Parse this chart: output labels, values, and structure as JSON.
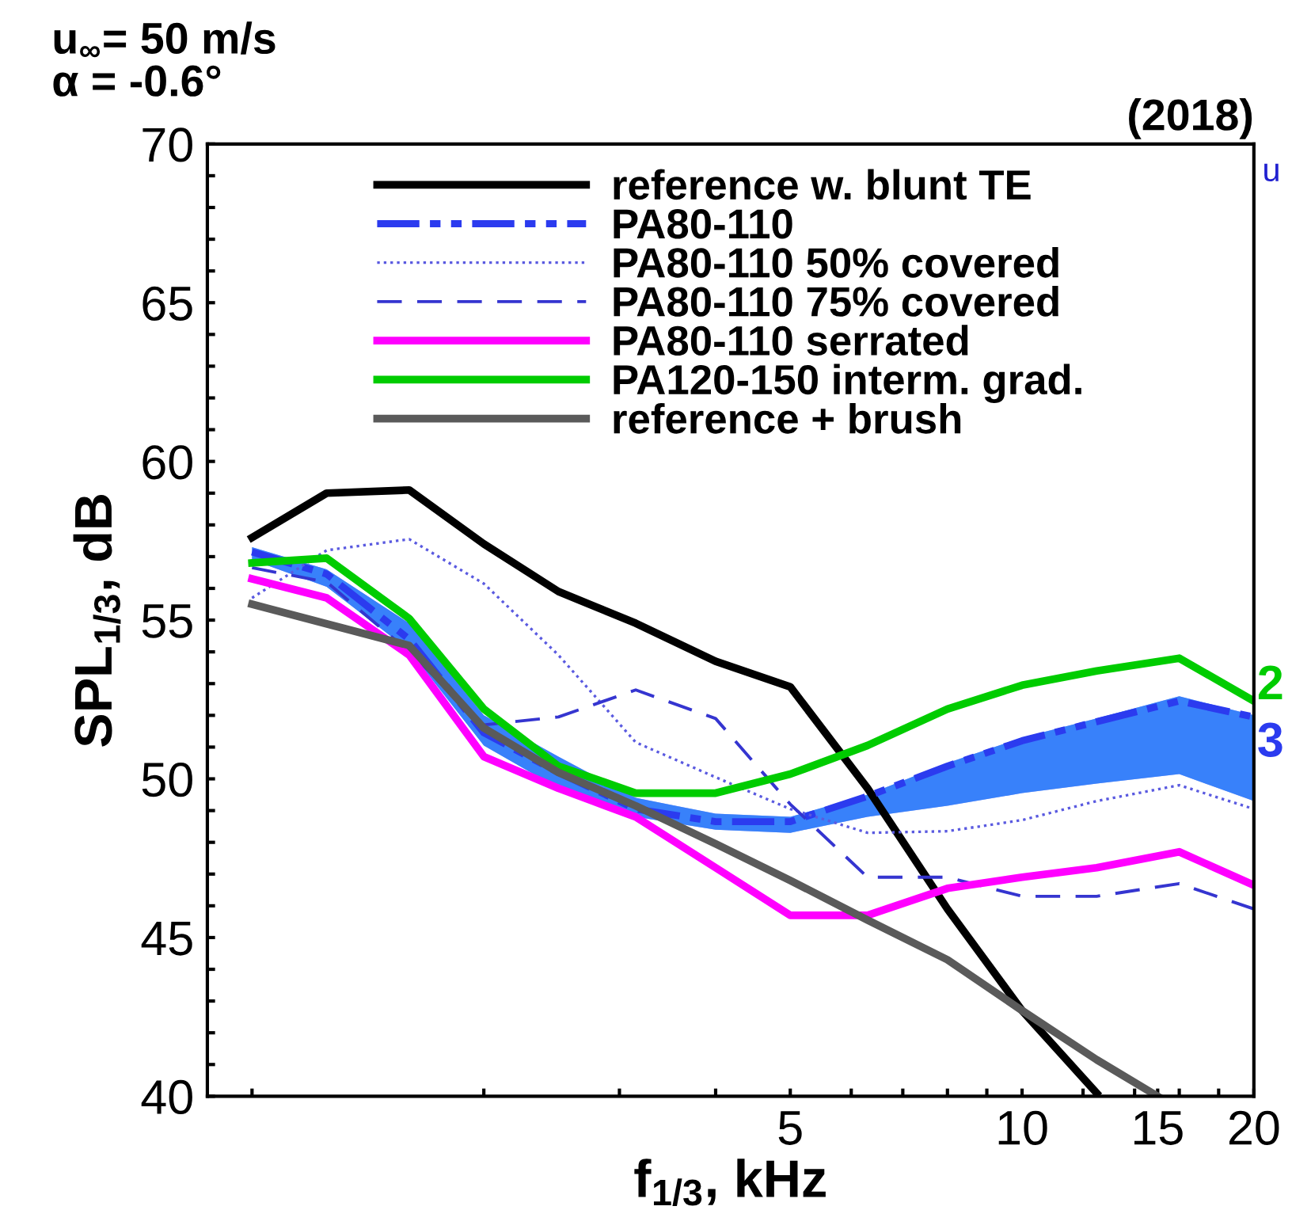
{
  "chart_data": {
    "type": "line",
    "title": "u$_{∞}$= 50 m/s",
    "subtitle": "α = -0.6°",
    "xlabel": "f$_{1/3}$, kHz",
    "ylabel": "SPL$_{1/3}$, dB",
    "annotations": [
      "(2018)",
      "u",
      "2",
      "3"
    ],
    "x": [
      1,
      1.25,
      1.6,
      2,
      2.5,
      3.15,
      4,
      5,
      6.3,
      8,
      10,
      12.5,
      16,
      20
    ],
    "series": [
      {
        "name": "reference w. blunt TE",
        "color": "#000000",
        "line_style": "solid",
        "values": [
          57.6,
          59.0,
          59.1,
          57.4,
          55.9,
          54.9,
          53.7,
          52.9,
          49.7,
          45.9,
          42.7,
          40.1,
          null,
          null
        ]
      },
      {
        "name": "PA80-110",
        "color": "#2b3bef",
        "line_style": "dashdot",
        "values": [
          57.15,
          56.45,
          54.4,
          51.45,
          50.2,
          49.05,
          48.65,
          48.65,
          49.45,
          50.4,
          51.2,
          51.8,
          52.45,
          51.95
        ],
        "lower": [
          56.9,
          56.05,
          54.05,
          51.05,
          49.7,
          48.8,
          48.4,
          48.3,
          48.8,
          49.15,
          49.55,
          49.85,
          50.15,
          49.3
        ],
        "upper": [
          57.3,
          56.6,
          54.9,
          52.0,
          50.7,
          49.4,
          48.9,
          48.8,
          49.5,
          50.5,
          51.3,
          51.9,
          52.6,
          52.0
        ]
      },
      {
        "name": "PA80-110 50% covered",
        "color": "#5a5ae0",
        "line_style": "dotted",
        "values": [
          55.7,
          57.2,
          57.55,
          56.15,
          53.9,
          51.15,
          50.05,
          49.05,
          48.3,
          48.35,
          48.7,
          49.3,
          49.8,
          49.05
        ]
      },
      {
        "name": "PA80-110 75% covered",
        "color": "#3535d0",
        "line_style": "dashed",
        "values": [
          56.65,
          56.2,
          54.0,
          51.7,
          51.95,
          52.8,
          51.9,
          49.2,
          46.9,
          46.9,
          46.3,
          46.3,
          46.7,
          45.9
        ]
      },
      {
        "name": "PA80-110 serrated",
        "color": "#ff00ff",
        "line_style": "solid",
        "values": [
          56.3,
          55.7,
          53.9,
          50.7,
          49.7,
          48.8,
          47.2,
          45.7,
          45.7,
          46.55,
          46.9,
          47.2,
          47.7,
          46.65
        ]
      },
      {
        "name": "PA120-150 interm. grad.",
        "color": "#00cc00",
        "line_style": "solid",
        "values": [
          56.8,
          56.95,
          55.05,
          52.2,
          50.4,
          49.55,
          49.55,
          50.15,
          51.05,
          52.2,
          52.95,
          53.4,
          53.8,
          52.45
        ]
      },
      {
        "name": "reference + brush",
        "color": "#5a5a5a",
        "line_style": "solid",
        "x": [
          1,
          1.6,
          2,
          2.5,
          3.15,
          4,
          5,
          6.3,
          8,
          10,
          12.5,
          15
        ],
        "values": [
          55.5,
          54.2,
          51.6,
          50.2,
          49.15,
          47.95,
          46.8,
          45.55,
          44.3,
          42.7,
          41.15,
          40.0
        ]
      }
    ],
    "log": "x",
    "xlim": [
      0.875,
      20
    ],
    "xticks": [
      {
        "value": 1,
        "label": null
      },
      {
        "value": 2,
        "label": null
      },
      {
        "value": 3,
        "label": null
      },
      {
        "value": 4,
        "label": null
      },
      5,
      {
        "value": 6,
        "label": null
      },
      {
        "value": 7,
        "label": null
      },
      {
        "value": 8,
        "label": null
      },
      {
        "value": 9,
        "label": null
      },
      10,
      {
        "value": 12,
        "label": null
      },
      {
        "value": 14,
        "label": null
      },
      15,
      {
        "value": 16,
        "label": null
      },
      {
        "value": 18,
        "label": null
      },
      20
    ],
    "ylim": [
      40,
      70
    ],
    "yticks": [
      40,
      {
        "value": 41,
        "label": null
      },
      {
        "value": 42,
        "label": null
      },
      {
        "value": 43,
        "label": null
      },
      {
        "value": 44,
        "label": null
      },
      45,
      {
        "value": 46,
        "label": null
      },
      {
        "value": 47,
        "label": null
      },
      {
        "value": 48,
        "label": null
      },
      {
        "value": 49,
        "label": null
      },
      50,
      {
        "value": 51,
        "label": null
      },
      {
        "value": 52,
        "label": null
      },
      {
        "value": 53,
        "label": null
      },
      {
        "value": 54,
        "label": null
      },
      55,
      {
        "value": 56,
        "label": null
      },
      {
        "value": 57,
        "label": null
      },
      {
        "value": 58,
        "label": null
      },
      {
        "value": 59,
        "label": null
      },
      60,
      {
        "value": 61,
        "label": null
      },
      {
        "value": 62,
        "label": null
      },
      {
        "value": 63,
        "label": null
      },
      {
        "value": 64,
        "label": null
      },
      65,
      {
        "value": 66,
        "label": null
      },
      {
        "value": 67,
        "label": null
      },
      {
        "value": 68,
        "label": null
      },
      {
        "value": 69,
        "label": null
      },
      70
    ],
    "grid": false,
    "legend": "top"
  }
}
